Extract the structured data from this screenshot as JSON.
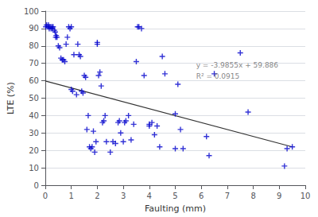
{
  "chart_data": {
    "type": "scatter",
    "xlabel": "Faulting (mm)",
    "ylabel": "LTE (%)",
    "xlim": [
      0,
      10
    ],
    "ylim": [
      0,
      100
    ],
    "xticks": [
      0,
      1,
      2,
      3,
      4,
      5,
      6,
      7,
      8,
      9,
      10
    ],
    "yticks": [
      0,
      10,
      20,
      30,
      40,
      50,
      60,
      70,
      80,
      90,
      100
    ],
    "grid": "y",
    "series": [
      {
        "type": "scatter",
        "color": "#0000CC",
        "marker": "+",
        "x": [
          0.02,
          0.05,
          0.1,
          0.12,
          0.15,
          0.18,
          0.22,
          0.25,
          0.28,
          0.3,
          0.35,
          0.38,
          0.4,
          0.42,
          0.45,
          0.5,
          0.55,
          0.6,
          0.65,
          0.7,
          0.75,
          0.8,
          0.85,
          0.9,
          0.95,
          1.0,
          1.0,
          1.05,
          1.1,
          1.2,
          1.25,
          1.3,
          1.35,
          1.4,
          1.45,
          1.5,
          1.55,
          1.6,
          1.65,
          1.7,
          1.75,
          1.8,
          1.85,
          1.9,
          1.95,
          2.0,
          2.0,
          2.05,
          2.1,
          2.15,
          2.2,
          2.25,
          2.3,
          2.35,
          2.5,
          2.6,
          2.7,
          2.8,
          2.85,
          2.9,
          3.0,
          3.05,
          3.1,
          3.2,
          3.3,
          3.4,
          3.5,
          3.55,
          3.6,
          3.7,
          3.8,
          4.0,
          4.0,
          4.1,
          4.2,
          4.3,
          4.4,
          4.5,
          4.6,
          5.0,
          5.0,
          5.1,
          5.2,
          5.3,
          6.2,
          6.3,
          6.5,
          7.5,
          7.8,
          9.2,
          9.3,
          9.5
        ],
        "values": [
          91,
          92,
          91,
          92,
          90,
          91,
          90,
          91,
          90,
          91,
          89,
          88,
          85,
          86,
          85,
          80,
          79,
          73,
          72,
          72,
          71,
          81,
          85,
          91,
          90,
          91,
          55,
          54,
          75,
          52,
          81,
          75,
          74,
          54,
          53,
          63,
          62,
          32,
          40,
          22,
          21,
          22,
          31,
          19,
          25,
          81,
          82,
          63,
          65,
          57,
          36,
          37,
          40,
          25,
          19,
          25,
          24,
          36,
          37,
          30,
          25,
          36,
          37,
          40,
          26,
          35,
          71,
          91,
          91,
          90,
          63,
          34,
          35,
          36,
          29,
          34,
          22,
          74,
          64,
          41,
          21,
          58,
          32,
          21,
          28,
          17,
          64,
          76,
          42,
          11,
          21,
          22
        ]
      },
      {
        "type": "line",
        "color": "#333333",
        "line_style": "solid",
        "x": [
          0.0,
          9.5
        ],
        "values": [
          59.886,
          22.02375
        ]
      }
    ],
    "annotations": [
      {
        "text": "y = -3.9855x + 59.886\nR² = 0.0915",
        "x": 5.8,
        "y": 72
      }
    ]
  }
}
